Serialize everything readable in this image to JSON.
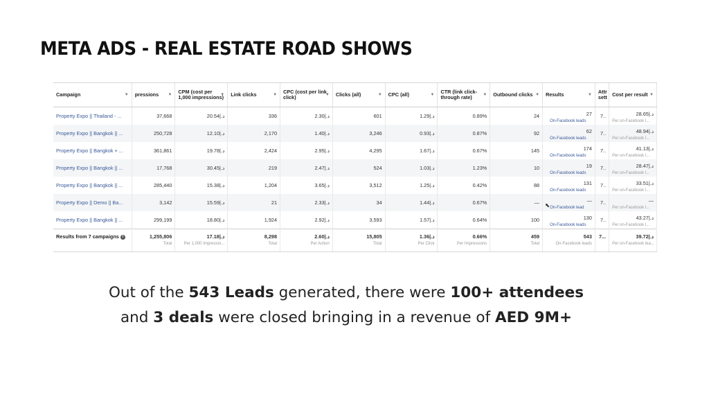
{
  "title": "META ADS - REAL ESTATE ROAD SHOWS",
  "table": {
    "headers": [
      "Campaign",
      "pressions",
      "CPM (cost per 1,000 impressions)",
      "Link clicks",
      "CPC (cost per link click)",
      "Clicks (all)",
      "CPC (all)",
      "CTR (link click-through rate)",
      "Outbound clicks",
      "Results",
      "Attr sett",
      "Cost per result"
    ],
    "rows": [
      {
        "campaign": "Property Expo || Thailand - ...",
        "impressions": "37,668",
        "cpm": "20.54|.ﺩ",
        "link_clicks": "336",
        "cpc": "2.30|.ﺩ",
        "clicks_all": "601",
        "cpc_all": "1.29|.ﺩ",
        "ctr": "0.89%",
        "outbound": "24",
        "results": "27",
        "results_sub": "On-Facebook leads",
        "attr": "7..",
        "cost_per_result": "28.65|.ﺩ",
        "cost_sub": "Per on-Facebook l..."
      },
      {
        "campaign": "Property Expo || Bangkok || ...",
        "impressions": "250,728",
        "cpm": "12.10|.ﺩ",
        "link_clicks": "2,170",
        "cpc": "1.40|.ﺩ",
        "clicks_all": "3,246",
        "cpc_all": "0.93|.ﺩ",
        "ctr": "0.87%",
        "outbound": "92",
        "results": "62",
        "results_sub": "On-Facebook leads",
        "attr": "7..",
        "cost_per_result": "48.94|.ﺩ",
        "cost_sub": "Per on-Facebook l..."
      },
      {
        "campaign": "Property Expo || Bangkok + ...",
        "impressions": "361,861",
        "cpm": "19.78|.ﺩ",
        "link_clicks": "2,424",
        "cpc": "2.95|.ﺩ",
        "clicks_all": "4,295",
        "cpc_all": "1.67|.ﺩ",
        "ctr": "0.67%",
        "outbound": "145",
        "results": "174",
        "results_sub": "On-Facebook leads",
        "attr": "7..",
        "cost_per_result": "41.13|.ﺩ",
        "cost_sub": "Per on-Facebook l..."
      },
      {
        "campaign": "Property Expo || Bangkok || ...",
        "impressions": "17,768",
        "cpm": "30.45|.ﺩ",
        "link_clicks": "219",
        "cpc": "2.47|.ﺩ",
        "clicks_all": "524",
        "cpc_all": "1.03|.ﺩ",
        "ctr": "1.23%",
        "outbound": "10",
        "results": "19",
        "results_sub": "On-Facebook leads",
        "attr": "7..",
        "cost_per_result": "28.47|.ﺩ",
        "cost_sub": "Per on-Facebook l..."
      },
      {
        "campaign": "Property Expo || Bangkok || ...",
        "impressions": "285,440",
        "cpm": "15.38|.ﺩ",
        "link_clicks": "1,204",
        "cpc": "3.65|.ﺩ",
        "clicks_all": "3,512",
        "cpc_all": "1.25|.ﺩ",
        "ctr": "0.42%",
        "outbound": "88",
        "results": "131",
        "results_sub": "On-Facebook leads",
        "attr": "7..",
        "cost_per_result": "33.51|.ﺩ",
        "cost_sub": "Per on-Facebook l..."
      },
      {
        "campaign": "Property Expo || Demo || Ba...",
        "impressions": "3,142",
        "cpm": "15.59|.ﺩ",
        "link_clicks": "21",
        "cpc": "2.33|.ﺩ",
        "clicks_all": "34",
        "cpc_all": "1.44|.ﺩ",
        "ctr": "0.67%",
        "outbound": "—",
        "results": "—",
        "results_sub": "On-Facebook lead",
        "attr": "7..",
        "cost_per_result": "—",
        "cost_sub": "Per on-Facebook l..."
      },
      {
        "campaign": "Property Expo || Bangkok || ...",
        "impressions": "299,199",
        "cpm": "18.80|.ﺩ",
        "link_clicks": "1,924",
        "cpc": "2.92|.ﺩ",
        "clicks_all": "3,593",
        "cpc_all": "1.57|.ﺩ",
        "ctr": "0.64%",
        "outbound": "100",
        "results": "130",
        "results_sub": "On-Facebook leads",
        "attr": "7..",
        "cost_per_result": "43.27|.ﺩ",
        "cost_sub": "Per on-Facebook l..."
      }
    ],
    "total": {
      "campaign": "Results from 7 campaigns",
      "impressions": "1,255,806",
      "impressions_sub": "Total",
      "cpm": "17.18|.ﺩ",
      "cpm_sub": "Per 1,000 Impressio...",
      "link_clicks": "8,298",
      "link_clicks_sub": "Total",
      "cpc": "2.60|.ﺩ",
      "cpc_sub": "Per Action",
      "clicks_all": "15,805",
      "clicks_all_sub": "Total",
      "cpc_all": "1.36|.ﺩ",
      "cpc_all_sub": "Per Click",
      "ctr": "0.66%",
      "ctr_sub": "Per Impressions",
      "outbound": "459",
      "outbound_sub": "Total",
      "results": "543",
      "results_sub": "On-Facebook leads",
      "attr": "7...",
      "cost_per_result": "39.72|.ﺩ",
      "cost_sub": "Per on-Facebook lea..."
    }
  },
  "summary": {
    "p1": "Out of the ",
    "b1": "543 Leads",
    "p2": " generated, there were ",
    "b2": "100+ attendees",
    "p3": "and ",
    "b3": "3 deals",
    "p4": " were closed bringing in a revenue of ",
    "b4": "AED 9M+"
  }
}
